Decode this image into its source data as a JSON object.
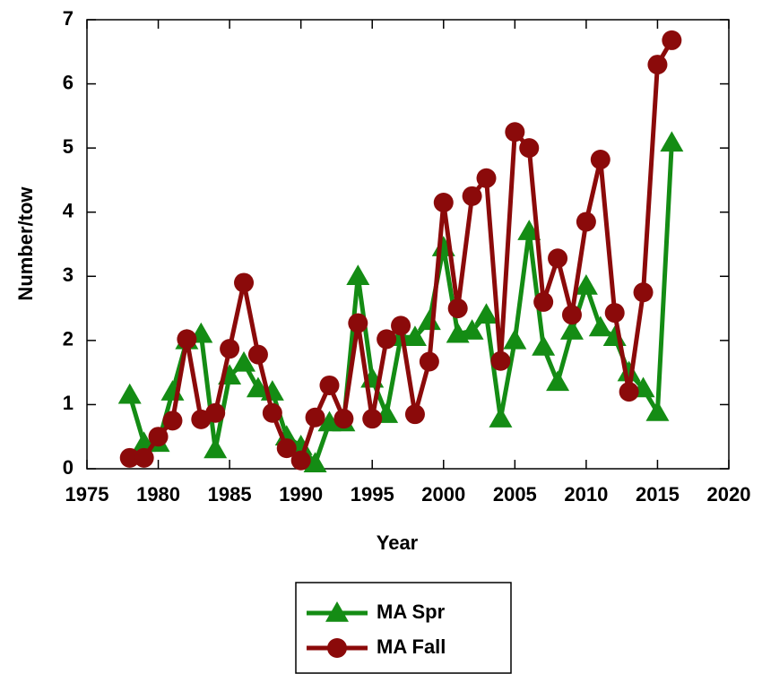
{
  "chart_data": {
    "type": "line",
    "xlabel": "Year",
    "ylabel": "Number/tow",
    "x": [
      1978,
      1979,
      1980,
      1981,
      1982,
      1983,
      1984,
      1985,
      1986,
      1987,
      1988,
      1989,
      1990,
      1991,
      1992,
      1993,
      1994,
      1995,
      1996,
      1997,
      1998,
      1999,
      2000,
      2001,
      2002,
      2003,
      2004,
      2005,
      2006,
      2007,
      2008,
      2009,
      2010,
      2011,
      2012,
      2013,
      2014,
      2015,
      2016
    ],
    "series": [
      {
        "name": "MA Spr",
        "color": "#148c14",
        "marker": "triangle",
        "values": [
          1.15,
          0.4,
          0.4,
          1.2,
          2.0,
          2.1,
          0.3,
          1.45,
          1.65,
          1.25,
          1.2,
          0.5,
          0.35,
          0.08,
          0.72,
          0.72,
          3.0,
          1.4,
          0.85,
          2.05,
          2.05,
          2.3,
          3.45,
          2.1,
          2.15,
          2.4,
          0.78,
          2.0,
          3.7,
          1.9,
          1.35,
          2.15,
          2.85,
          2.2,
          2.05,
          1.5,
          1.25,
          0.88,
          5.08
        ]
      },
      {
        "name": "MA Fall",
        "color": "#8b0a0a",
        "marker": "circle",
        "values": [
          0.17,
          0.17,
          0.5,
          0.75,
          2.02,
          0.77,
          0.87,
          1.87,
          2.9,
          1.78,
          0.87,
          0.32,
          0.13,
          0.8,
          1.3,
          0.78,
          2.27,
          0.78,
          2.02,
          2.23,
          0.85,
          1.67,
          4.15,
          2.5,
          4.25,
          4.53,
          1.68,
          5.25,
          5.0,
          2.6,
          3.28,
          2.4,
          3.85,
          4.82,
          2.43,
          1.2,
          2.75,
          6.3,
          6.68
        ]
      }
    ],
    "xlim": [
      1975,
      2020
    ],
    "xticks": [
      1975,
      1980,
      1985,
      1990,
      1995,
      2000,
      2005,
      2010,
      2015,
      2020
    ],
    "ylim": [
      0,
      7
    ],
    "yticks": [
      0,
      1,
      2,
      3,
      4,
      5,
      6,
      7
    ],
    "legend": "bottom"
  }
}
